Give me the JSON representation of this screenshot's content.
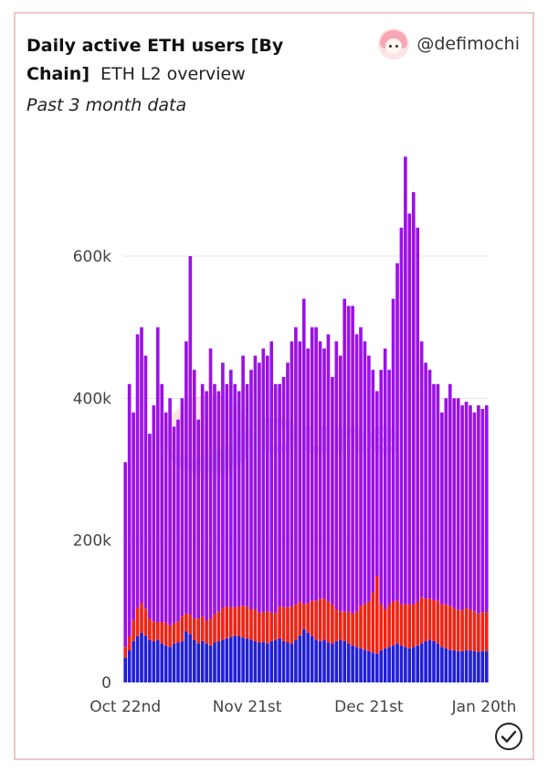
{
  "header": {
    "title": "Daily active ETH users [By Chain]",
    "subtitle": "ETH L2 overview",
    "period": "Past 3 month data",
    "author": "@defimochi"
  },
  "watermark": "Dune",
  "colors": {
    "purple": "#9b10e8",
    "red": "#f02414",
    "blue": "#2020d8",
    "grid": "#e6e6e6",
    "axis_text": "#444444"
  },
  "icons": {
    "avatar": "anime-avatar-icon",
    "verified": "check-circle-icon"
  },
  "chart_data": {
    "type": "bar",
    "stacked": true,
    "title": "Daily active ETH users [By Chain]",
    "xlabel": "",
    "ylabel": "",
    "ylim": [
      0,
      750000
    ],
    "yticks": [
      0,
      200000,
      400000,
      600000
    ],
    "ytick_labels": [
      "0",
      "200k",
      "400k",
      "600k"
    ],
    "xtick_labels": [
      {
        "index": 0,
        "label": "Oct 22nd"
      },
      {
        "index": 30,
        "label": "Nov 21st"
      },
      {
        "index": 60,
        "label": "Dec 21st"
      },
      {
        "index": 90,
        "label": "Jan 20th"
      }
    ],
    "grid": true,
    "legend": "none",
    "totals": [
      310000,
      420000,
      380000,
      490000,
      500000,
      460000,
      350000,
      390000,
      500000,
      420000,
      380000,
      400000,
      360000,
      370000,
      400000,
      480000,
      600000,
      440000,
      370000,
      420000,
      410000,
      470000,
      420000,
      410000,
      450000,
      420000,
      440000,
      420000,
      410000,
      460000,
      420000,
      440000,
      460000,
      450000,
      470000,
      460000,
      480000,
      420000,
      420000,
      430000,
      450000,
      480000,
      500000,
      480000,
      540000,
      470000,
      500000,
      500000,
      480000,
      470000,
      490000,
      430000,
      480000,
      460000,
      540000,
      530000,
      530000,
      490000,
      500000,
      480000,
      460000,
      440000,
      410000,
      440000,
      470000,
      440000,
      540000,
      590000,
      640000,
      740000,
      660000,
      690000,
      640000,
      480000,
      450000,
      440000,
      420000,
      420000,
      380000,
      400000,
      420000,
      400000,
      400000,
      390000,
      395000,
      390000,
      380000,
      390000,
      385000,
      390000
    ],
    "series": [
      {
        "name": "",
        "color": "#2020d8",
        "values": [
          35000,
          45000,
          58000,
          65000,
          70000,
          66000,
          60000,
          58000,
          60000,
          55000,
          52000,
          50000,
          55000,
          56000,
          58000,
          72000,
          68000,
          60000,
          55000,
          58000,
          55000,
          52000,
          56000,
          58000,
          60000,
          62000,
          64000,
          66000,
          65000,
          63000,
          62000,
          60000,
          58000,
          56000,
          57000,
          55000,
          58000,
          60000,
          62000,
          58000,
          56000,
          55000,
          60000,
          66000,
          75000,
          70000,
          65000,
          60000,
          58000,
          60000,
          56000,
          55000,
          58000,
          60000,
          58000,
          55000,
          52000,
          50000,
          48000,
          46000,
          44000,
          42000,
          40000,
          45000,
          48000,
          50000,
          52000,
          55000,
          52000,
          50000,
          48000,
          50000,
          52000,
          55000,
          58000,
          60000,
          58000,
          55000,
          50000,
          48000,
          46000,
          45000,
          44000,
          44000,
          45000,
          45000,
          44000,
          43000,
          44000,
          44000
        ]
      },
      {
        "name": "",
        "color": "#f02414",
        "values": [
          15000,
          20000,
          30000,
          40000,
          42000,
          38000,
          30000,
          28000,
          25000,
          30000,
          32000,
          30000,
          28000,
          30000,
          35000,
          25000,
          28000,
          30000,
          35000,
          35000,
          32000,
          38000,
          40000,
          42000,
          45000,
          45000,
          42000,
          40000,
          42000,
          45000,
          45000,
          43000,
          45000,
          42000,
          42000,
          45000,
          40000,
          38000,
          45000,
          48000,
          50000,
          52000,
          50000,
          48000,
          35000,
          42000,
          50000,
          55000,
          60000,
          58000,
          58000,
          55000,
          45000,
          40000,
          42000,
          45000,
          45000,
          50000,
          60000,
          65000,
          70000,
          85000,
          110000,
          65000,
          55000,
          60000,
          62000,
          60000,
          58000,
          60000,
          62000,
          60000,
          62000,
          65000,
          60000,
          58000,
          58000,
          60000,
          60000,
          62000,
          62000,
          60000,
          58000,
          58000,
          60000,
          58000,
          56000,
          54000,
          55000,
          55000
        ]
      },
      {
        "name": "",
        "color": "#9b10e8",
        "values": []
      }
    ]
  }
}
